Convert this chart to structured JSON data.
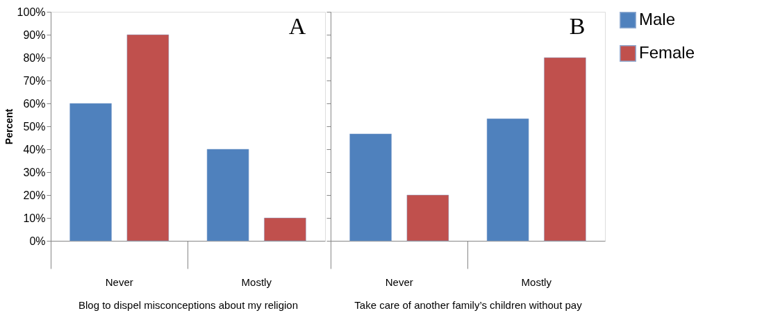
{
  "chart_data": [
    {
      "type": "bar",
      "annotations": [
        "A"
      ],
      "xlabel": "Blog to dispel misconceptions about my religion",
      "ylabel": "Percent",
      "categories": [
        "Never",
        "Mostly"
      ],
      "series": [
        {
          "name": "Male",
          "color": "#4f81bd",
          "values": [
            60,
            40
          ]
        },
        {
          "name": "Female",
          "color": "#c0504d",
          "values": [
            90,
            10
          ]
        }
      ],
      "ylim": [
        0,
        100
      ],
      "yticks": [
        {
          "value": 0,
          "label": "0%"
        },
        {
          "value": 10,
          "label": "10%"
        },
        {
          "value": 20,
          "label": "20%"
        },
        {
          "value": 30,
          "label": "30%"
        },
        {
          "value": 40,
          "label": "40%"
        },
        {
          "value": 50,
          "label": "50%"
        },
        {
          "value": 60,
          "label": "60%"
        },
        {
          "value": 70,
          "label": "70%"
        },
        {
          "value": 80,
          "label": "80%"
        },
        {
          "value": 90,
          "label": "90%"
        },
        {
          "value": 100,
          "label": "100%"
        }
      ],
      "grid": false,
      "legend": "right"
    },
    {
      "type": "bar",
      "annotations": [
        "B"
      ],
      "xlabel": "Take care of another family’s children without pay",
      "categories": [
        "Never",
        "Mostly"
      ],
      "series": [
        {
          "name": "Male",
          "color": "#4f81bd",
          "values": [
            46.7,
            53.3
          ]
        },
        {
          "name": "Female",
          "color": "#c0504d",
          "values": [
            20,
            80
          ]
        }
      ],
      "ylim": [
        0,
        100
      ],
      "yticks": [
        {
          "value": 0,
          "label": null
        },
        {
          "value": 10,
          "label": null
        },
        {
          "value": 20,
          "label": null
        },
        {
          "value": 30,
          "label": null
        },
        {
          "value": 40,
          "label": null
        },
        {
          "value": 50,
          "label": null
        },
        {
          "value": 60,
          "label": null
        },
        {
          "value": 70,
          "label": null
        },
        {
          "value": 80,
          "label": null
        },
        {
          "value": 90,
          "label": null
        },
        {
          "value": 100,
          "label": null
        }
      ],
      "tick_labels": "x",
      "grid": false,
      "legend": "right"
    }
  ]
}
